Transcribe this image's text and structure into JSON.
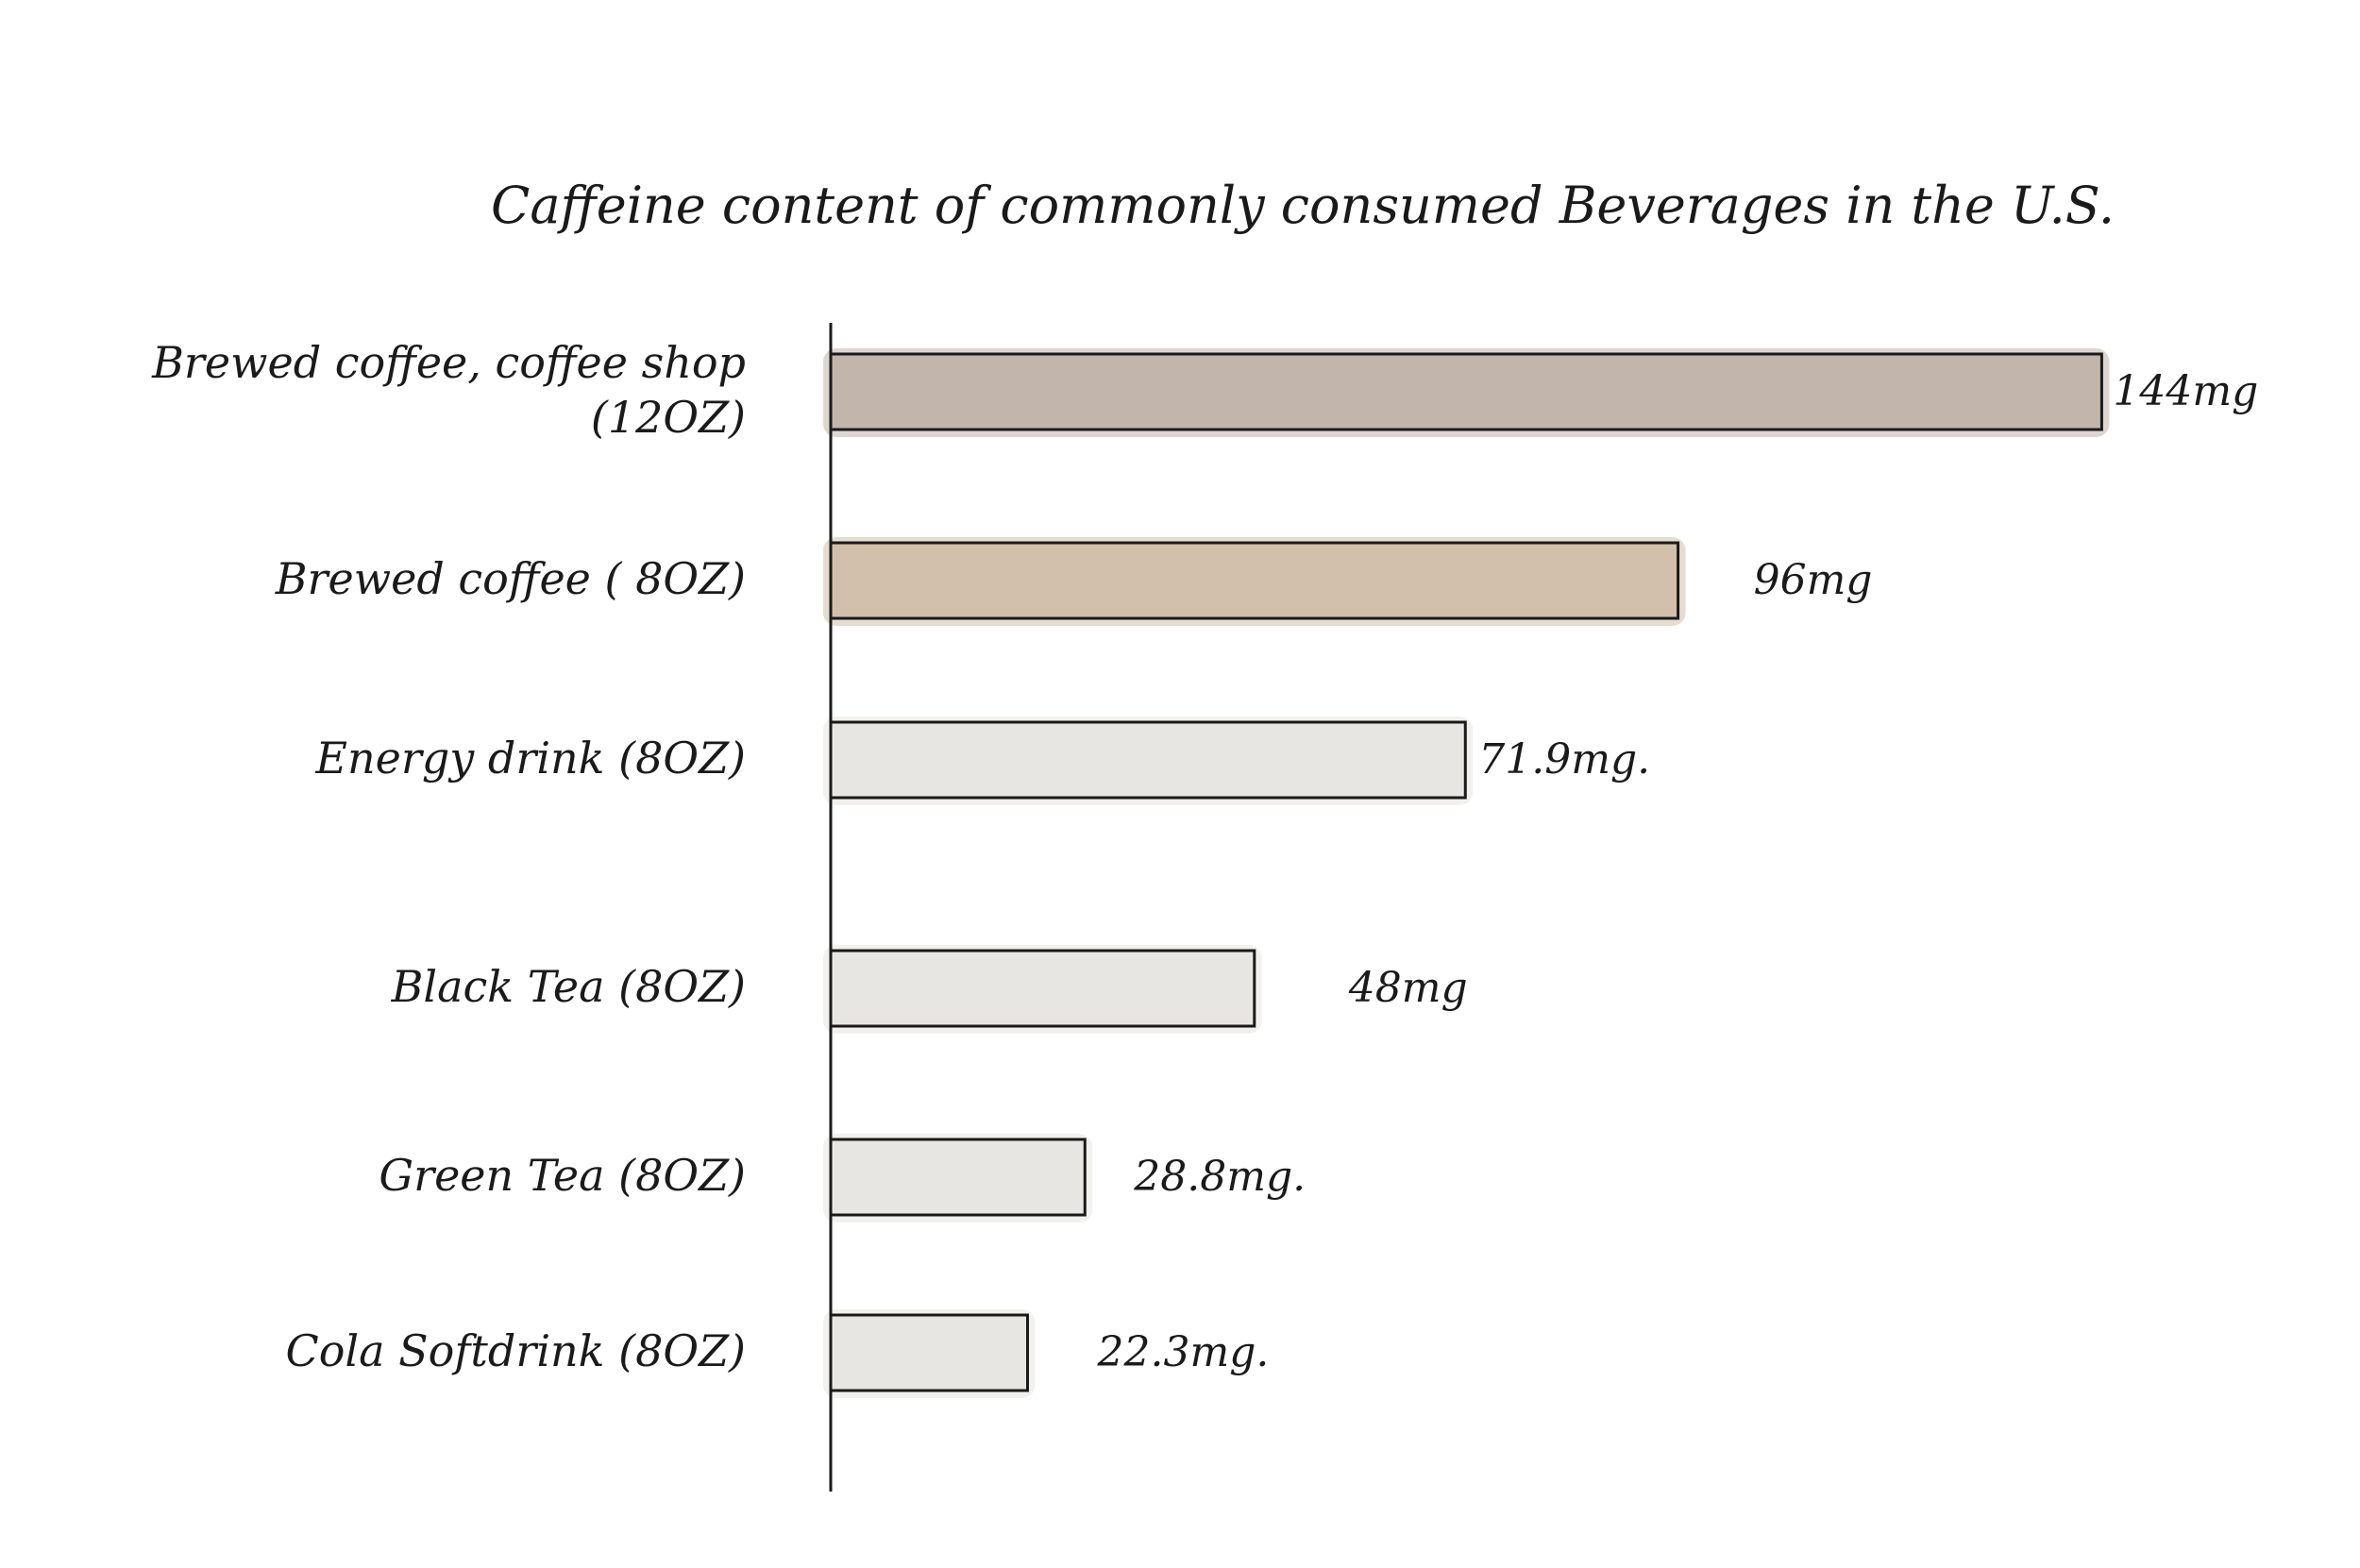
{
  "chart_data": {
    "type": "bar",
    "orientation": "horizontal",
    "title": "Caffeine content of commonly consumed Beverages in the U.S.",
    "xlabel": "",
    "ylabel": "",
    "grid": false,
    "legend": "none",
    "unit": "mg",
    "categories": [
      {
        "lines": [
          "Brewed coffee, coffee shop",
          "(12OZ)"
        ]
      },
      {
        "lines": [
          "Brewed coffee ( 8OZ)"
        ]
      },
      {
        "lines": [
          "Energy drink (8OZ)"
        ]
      },
      {
        "lines": [
          "Black Tea (8OZ)"
        ]
      },
      {
        "lines": [
          "Green Tea (8OZ)"
        ]
      },
      {
        "lines": [
          "Cola Softdrink (8OZ)"
        ]
      }
    ],
    "values": [
      144,
      96,
      71.9,
      48,
      28.8,
      22.3
    ],
    "value_labels": [
      "144mg",
      "96mg",
      "71.9mg.",
      "48mg",
      "28.8mg.",
      "22.3mg."
    ],
    "colors": [
      "#c2b5ab",
      "#d2c0ab",
      "#e8e6e2",
      "#e8e6e2",
      "#e8e6e2",
      "#e8e6e2"
    ],
    "stroke_color": "#1a1a1a"
  }
}
